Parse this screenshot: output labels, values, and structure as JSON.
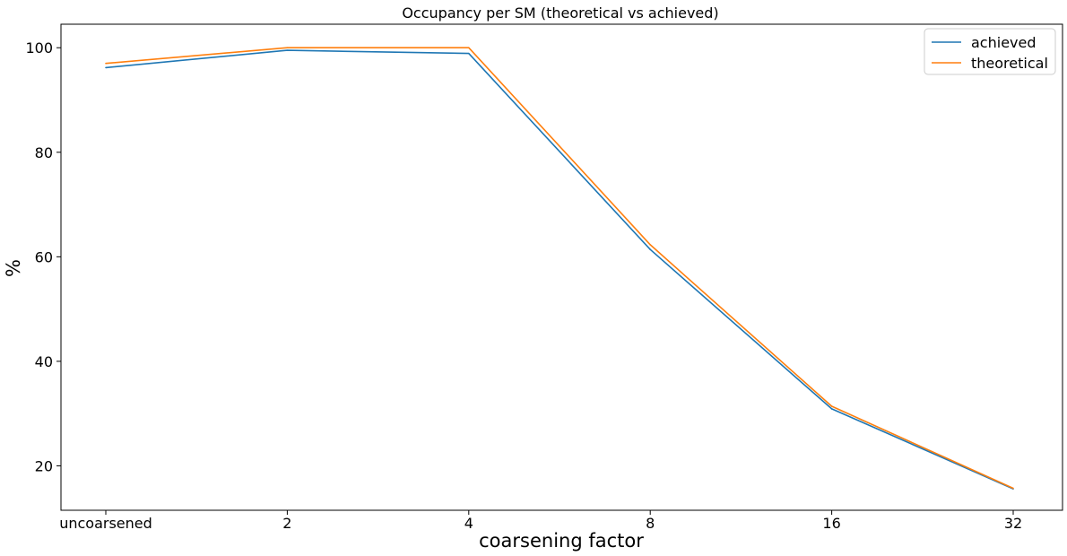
{
  "chart_data": {
    "type": "line",
    "title": "Occupancy per SM (theoretical vs achieved)",
    "xlabel": "coarsening factor",
    "ylabel": "%",
    "categories": [
      "uncoarsened",
      "2",
      "4",
      "8",
      "16",
      "32"
    ],
    "yticks": [
      20,
      40,
      60,
      80,
      100
    ],
    "ylim": [
      11.5,
      104.5
    ],
    "grid": false,
    "legend_position": "top-right",
    "series": [
      {
        "name": "achieved",
        "color": "#1f77b4",
        "values": [
          96.2,
          99.5,
          98.9,
          61.4,
          30.9,
          15.6
        ]
      },
      {
        "name": "theoretical",
        "color": "#ff7f0e",
        "values": [
          97.0,
          100.0,
          100.0,
          62.3,
          31.4,
          15.7
        ]
      }
    ]
  }
}
